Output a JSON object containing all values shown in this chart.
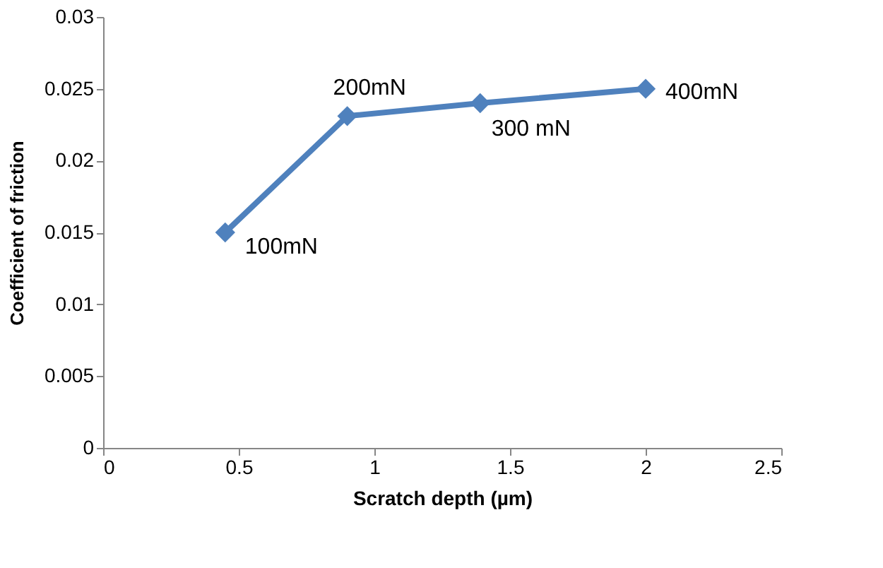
{
  "chart_data": {
    "type": "line",
    "xlabel": "Scratch depth (µm)",
    "ylabel": "Coefficient of friction",
    "x": [
      0.45,
      0.9,
      1.39,
      2.0
    ],
    "series": [
      {
        "color": "#4f81bd",
        "values": [
          0.015,
          0.0231,
          0.024,
          0.025
        ]
      }
    ],
    "xlim": [
      0,
      2.5
    ],
    "xticks": [
      0,
      0.5,
      1,
      1.5,
      2,
      2.5
    ],
    "ylim": [
      0,
      0.03
    ],
    "yticks": [
      0,
      0.005,
      0.01,
      0.015,
      0.02,
      0.025,
      0.03
    ],
    "grid": false,
    "marker": "diamond",
    "line_style": "solid",
    "annotations": [
      {
        "text": "100mN",
        "x": 0.45,
        "y": 0.015
      },
      {
        "text": "200mN",
        "x": 0.9,
        "y": 0.0231
      },
      {
        "text": "300 mN",
        "x": 1.39,
        "y": 0.024
      },
      {
        "text": "400mN",
        "x": 2.0,
        "y": 0.025
      }
    ]
  }
}
